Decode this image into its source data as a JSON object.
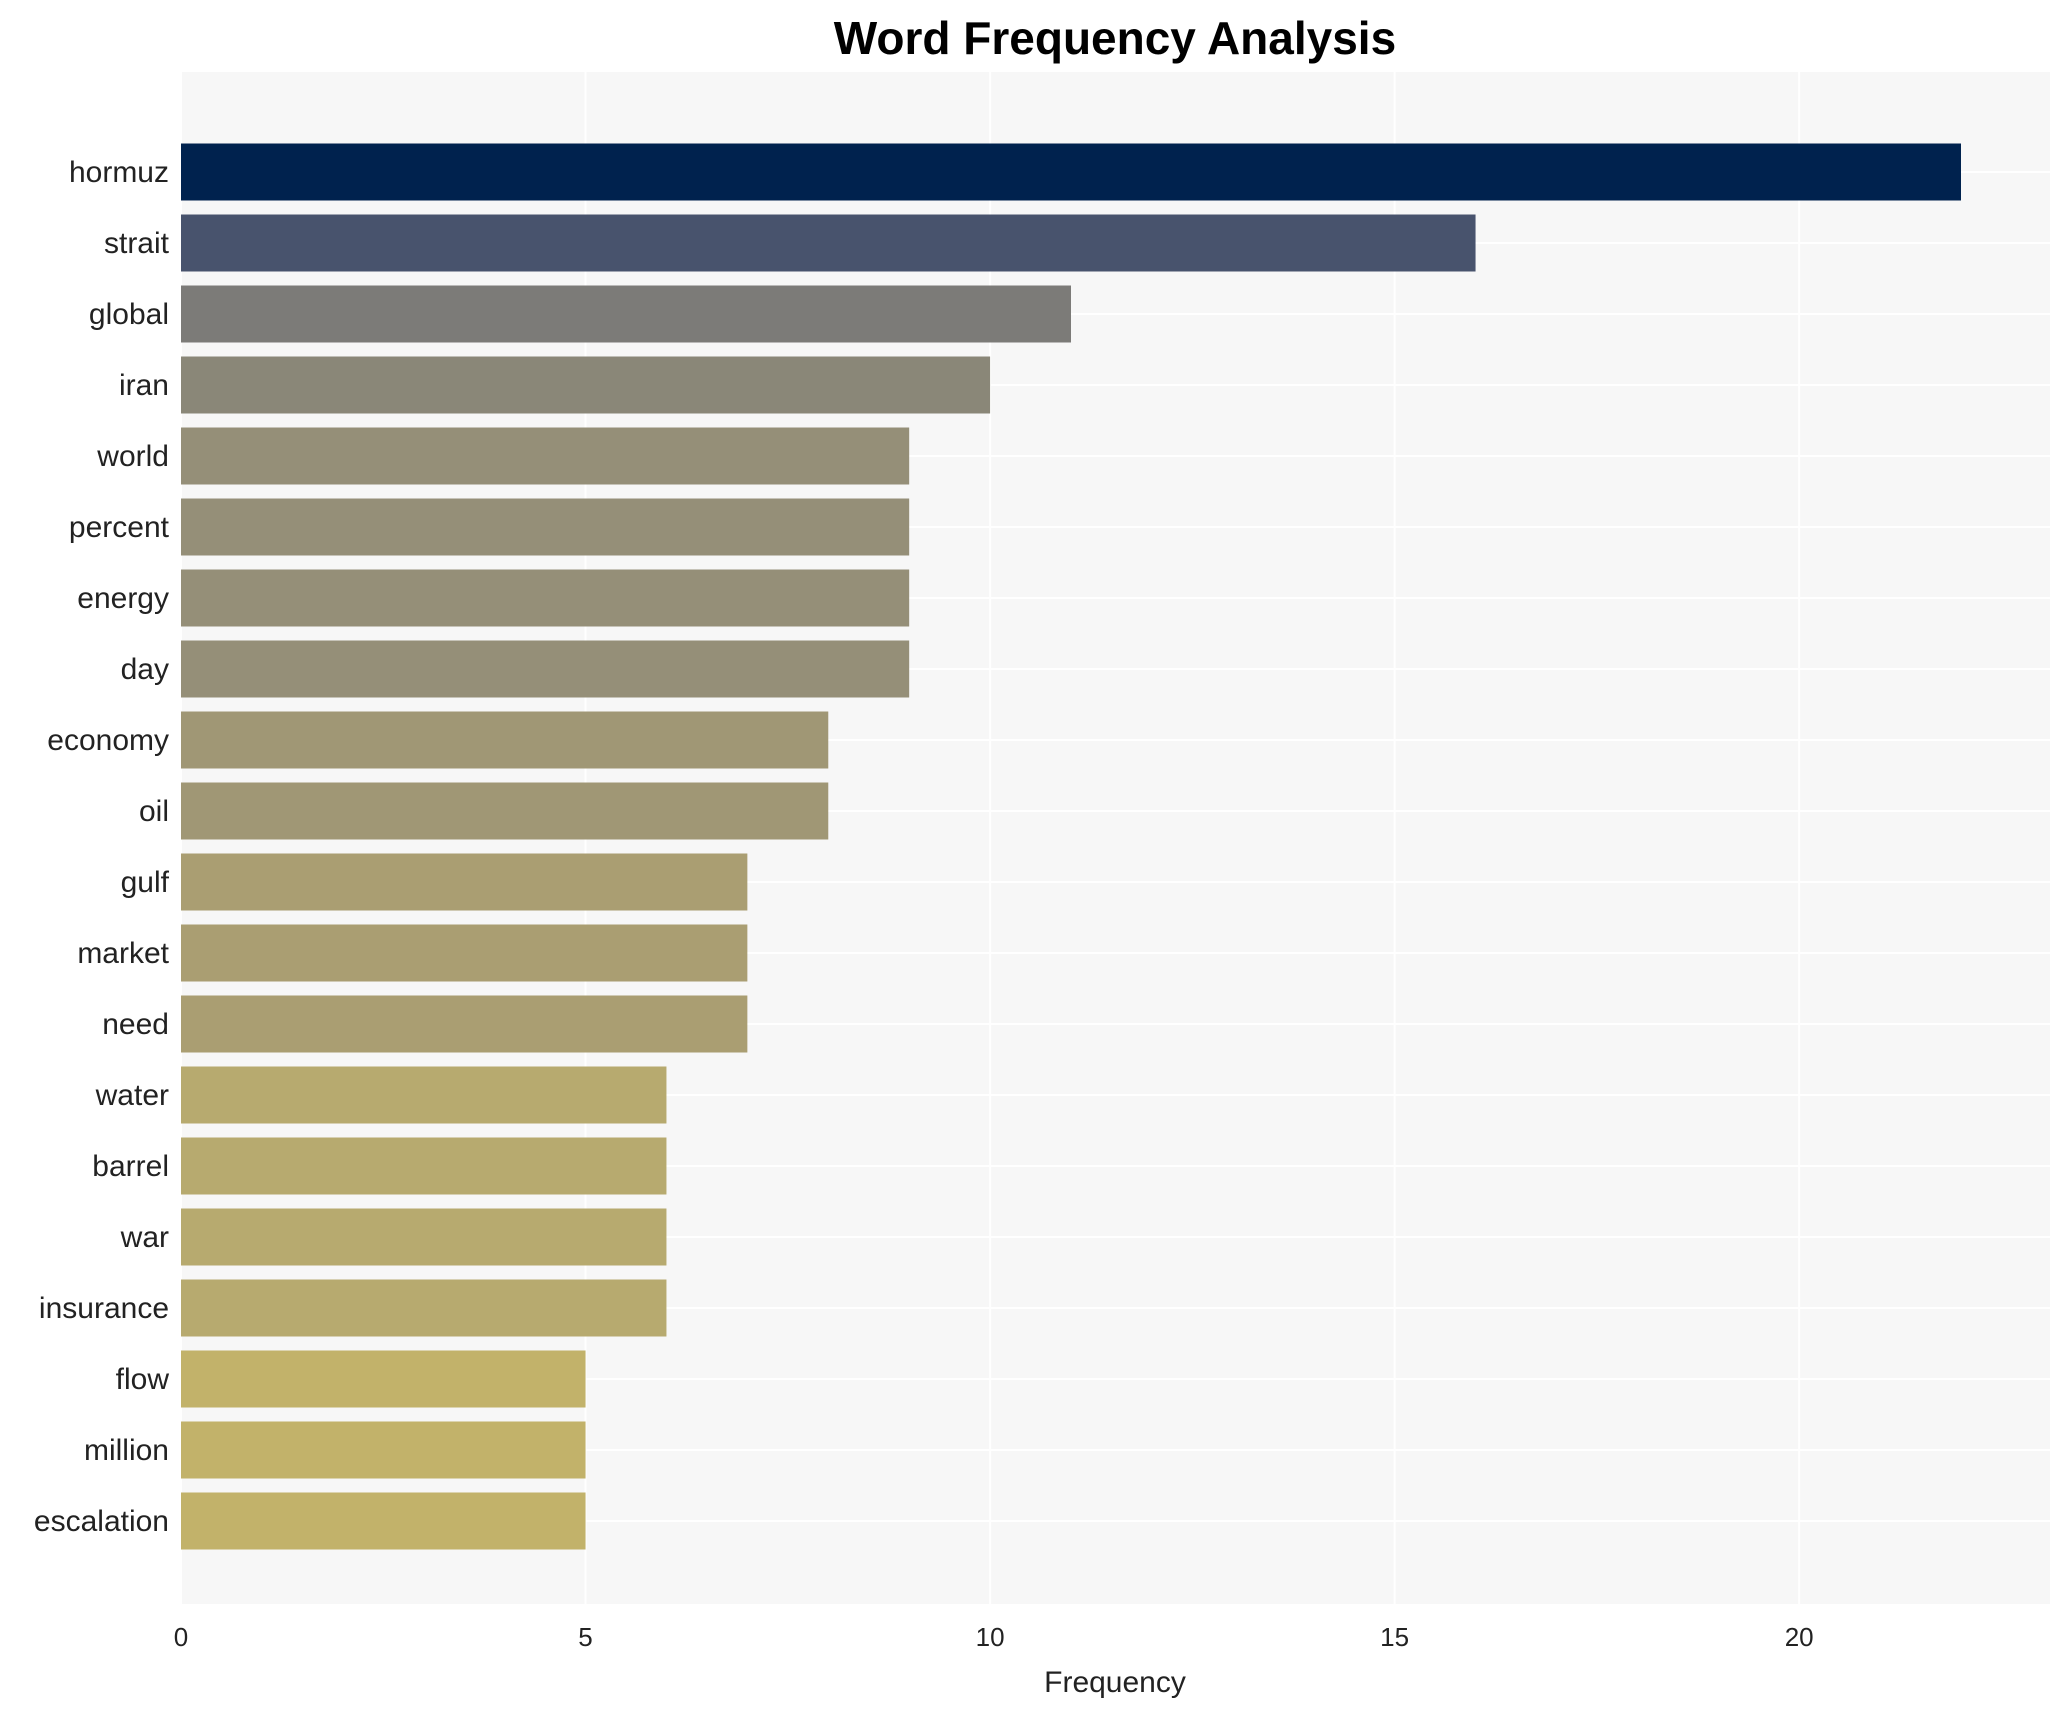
{
  "chart_data": {
    "type": "bar",
    "orientation": "horizontal",
    "title": "Word Frequency Analysis",
    "xlabel": "Frequency",
    "ylabel": "",
    "xlim": [
      0,
      23.1
    ],
    "xticks": [
      0,
      5,
      10,
      15,
      20
    ],
    "grid": true,
    "categories": [
      "hormuz",
      "strait",
      "global",
      "iran",
      "world",
      "percent",
      "energy",
      "day",
      "economy",
      "oil",
      "gulf",
      "market",
      "need",
      "water",
      "barrel",
      "war",
      "insurance",
      "flow",
      "million",
      "escalation"
    ],
    "values": [
      22,
      16,
      11,
      10,
      9,
      9,
      9,
      9,
      8,
      8,
      7,
      7,
      7,
      6,
      6,
      6,
      6,
      5,
      5,
      5
    ],
    "colors": [
      "#00224e",
      "#48536d",
      "#7c7b78",
      "#8a8778",
      "#958f78",
      "#958f78",
      "#958f78",
      "#958f78",
      "#a09775",
      "#a09775",
      "#aa9e72",
      "#aa9e72",
      "#aa9e72",
      "#b7aa6f",
      "#b7aa6f",
      "#b7aa6f",
      "#b7aa6f",
      "#c2b26a",
      "#c2b26a",
      "#c2b26a"
    ],
    "background": "#f7f7f7"
  }
}
